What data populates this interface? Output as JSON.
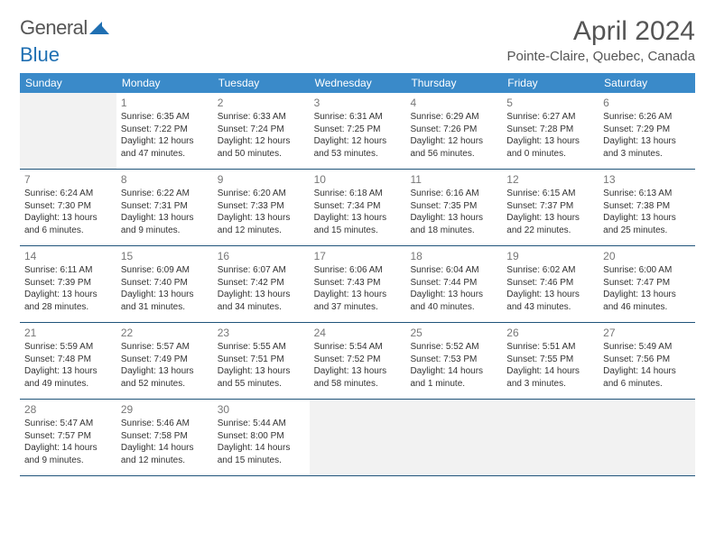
{
  "brand": {
    "name_part1": "General",
    "name_part2": "Blue"
  },
  "title": "April 2024",
  "location": "Pointe-Claire, Quebec, Canada",
  "colors": {
    "header_bg": "#3a8ac9",
    "header_text": "#ffffff",
    "week_border": "#20547a",
    "empty_bg": "#f2f2f2",
    "text": "#333333",
    "muted": "#777777",
    "page_bg": "#ffffff"
  },
  "weekdays": [
    "Sunday",
    "Monday",
    "Tuesday",
    "Wednesday",
    "Thursday",
    "Friday",
    "Saturday"
  ],
  "grid": {
    "first_weekday_index": 1,
    "days_in_month": 30
  },
  "days": [
    {
      "n": 1,
      "sunrise": "Sunrise: 6:35 AM",
      "sunset": "Sunset: 7:22 PM",
      "daylight": "Daylight: 12 hours and 47 minutes."
    },
    {
      "n": 2,
      "sunrise": "Sunrise: 6:33 AM",
      "sunset": "Sunset: 7:24 PM",
      "daylight": "Daylight: 12 hours and 50 minutes."
    },
    {
      "n": 3,
      "sunrise": "Sunrise: 6:31 AM",
      "sunset": "Sunset: 7:25 PM",
      "daylight": "Daylight: 12 hours and 53 minutes."
    },
    {
      "n": 4,
      "sunrise": "Sunrise: 6:29 AM",
      "sunset": "Sunset: 7:26 PM",
      "daylight": "Daylight: 12 hours and 56 minutes."
    },
    {
      "n": 5,
      "sunrise": "Sunrise: 6:27 AM",
      "sunset": "Sunset: 7:28 PM",
      "daylight": "Daylight: 13 hours and 0 minutes."
    },
    {
      "n": 6,
      "sunrise": "Sunrise: 6:26 AM",
      "sunset": "Sunset: 7:29 PM",
      "daylight": "Daylight: 13 hours and 3 minutes."
    },
    {
      "n": 7,
      "sunrise": "Sunrise: 6:24 AM",
      "sunset": "Sunset: 7:30 PM",
      "daylight": "Daylight: 13 hours and 6 minutes."
    },
    {
      "n": 8,
      "sunrise": "Sunrise: 6:22 AM",
      "sunset": "Sunset: 7:31 PM",
      "daylight": "Daylight: 13 hours and 9 minutes."
    },
    {
      "n": 9,
      "sunrise": "Sunrise: 6:20 AM",
      "sunset": "Sunset: 7:33 PM",
      "daylight": "Daylight: 13 hours and 12 minutes."
    },
    {
      "n": 10,
      "sunrise": "Sunrise: 6:18 AM",
      "sunset": "Sunset: 7:34 PM",
      "daylight": "Daylight: 13 hours and 15 minutes."
    },
    {
      "n": 11,
      "sunrise": "Sunrise: 6:16 AM",
      "sunset": "Sunset: 7:35 PM",
      "daylight": "Daylight: 13 hours and 18 minutes."
    },
    {
      "n": 12,
      "sunrise": "Sunrise: 6:15 AM",
      "sunset": "Sunset: 7:37 PM",
      "daylight": "Daylight: 13 hours and 22 minutes."
    },
    {
      "n": 13,
      "sunrise": "Sunrise: 6:13 AM",
      "sunset": "Sunset: 7:38 PM",
      "daylight": "Daylight: 13 hours and 25 minutes."
    },
    {
      "n": 14,
      "sunrise": "Sunrise: 6:11 AM",
      "sunset": "Sunset: 7:39 PM",
      "daylight": "Daylight: 13 hours and 28 minutes."
    },
    {
      "n": 15,
      "sunrise": "Sunrise: 6:09 AM",
      "sunset": "Sunset: 7:40 PM",
      "daylight": "Daylight: 13 hours and 31 minutes."
    },
    {
      "n": 16,
      "sunrise": "Sunrise: 6:07 AM",
      "sunset": "Sunset: 7:42 PM",
      "daylight": "Daylight: 13 hours and 34 minutes."
    },
    {
      "n": 17,
      "sunrise": "Sunrise: 6:06 AM",
      "sunset": "Sunset: 7:43 PM",
      "daylight": "Daylight: 13 hours and 37 minutes."
    },
    {
      "n": 18,
      "sunrise": "Sunrise: 6:04 AM",
      "sunset": "Sunset: 7:44 PM",
      "daylight": "Daylight: 13 hours and 40 minutes."
    },
    {
      "n": 19,
      "sunrise": "Sunrise: 6:02 AM",
      "sunset": "Sunset: 7:46 PM",
      "daylight": "Daylight: 13 hours and 43 minutes."
    },
    {
      "n": 20,
      "sunrise": "Sunrise: 6:00 AM",
      "sunset": "Sunset: 7:47 PM",
      "daylight": "Daylight: 13 hours and 46 minutes."
    },
    {
      "n": 21,
      "sunrise": "Sunrise: 5:59 AM",
      "sunset": "Sunset: 7:48 PM",
      "daylight": "Daylight: 13 hours and 49 minutes."
    },
    {
      "n": 22,
      "sunrise": "Sunrise: 5:57 AM",
      "sunset": "Sunset: 7:49 PM",
      "daylight": "Daylight: 13 hours and 52 minutes."
    },
    {
      "n": 23,
      "sunrise": "Sunrise: 5:55 AM",
      "sunset": "Sunset: 7:51 PM",
      "daylight": "Daylight: 13 hours and 55 minutes."
    },
    {
      "n": 24,
      "sunrise": "Sunrise: 5:54 AM",
      "sunset": "Sunset: 7:52 PM",
      "daylight": "Daylight: 13 hours and 58 minutes."
    },
    {
      "n": 25,
      "sunrise": "Sunrise: 5:52 AM",
      "sunset": "Sunset: 7:53 PM",
      "daylight": "Daylight: 14 hours and 1 minute."
    },
    {
      "n": 26,
      "sunrise": "Sunrise: 5:51 AM",
      "sunset": "Sunset: 7:55 PM",
      "daylight": "Daylight: 14 hours and 3 minutes."
    },
    {
      "n": 27,
      "sunrise": "Sunrise: 5:49 AM",
      "sunset": "Sunset: 7:56 PM",
      "daylight": "Daylight: 14 hours and 6 minutes."
    },
    {
      "n": 28,
      "sunrise": "Sunrise: 5:47 AM",
      "sunset": "Sunset: 7:57 PM",
      "daylight": "Daylight: 14 hours and 9 minutes."
    },
    {
      "n": 29,
      "sunrise": "Sunrise: 5:46 AM",
      "sunset": "Sunset: 7:58 PM",
      "daylight": "Daylight: 14 hours and 12 minutes."
    },
    {
      "n": 30,
      "sunrise": "Sunrise: 5:44 AM",
      "sunset": "Sunset: 8:00 PM",
      "daylight": "Daylight: 14 hours and 15 minutes."
    }
  ]
}
